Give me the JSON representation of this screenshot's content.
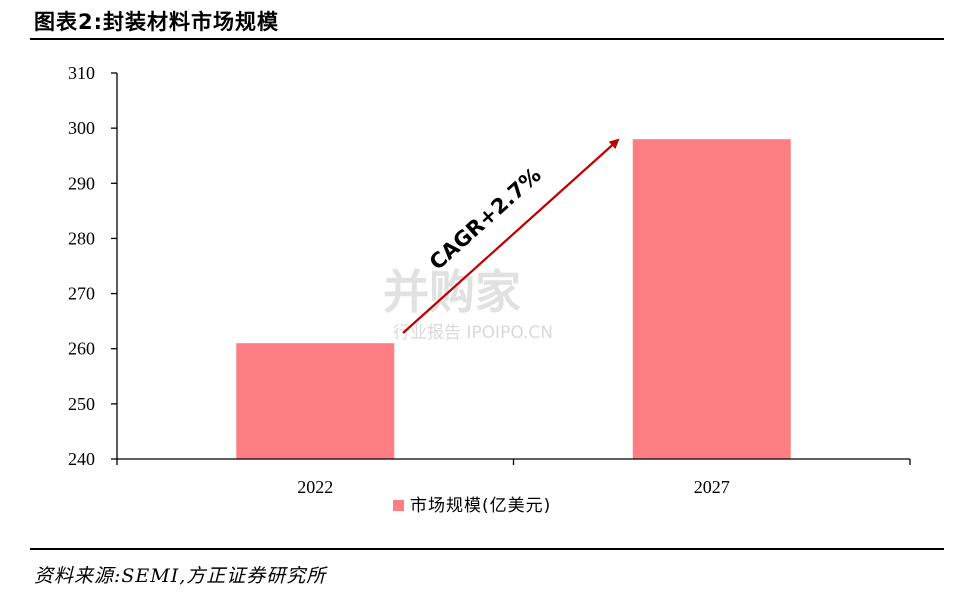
{
  "figure_title": "图表2:封装材料市场规模",
  "source_text": "资料来源:SEMI,方正证券研究所",
  "watermark": {
    "main": "并购家",
    "sub": "行业报告 IPOIPO.CN"
  },
  "colors": {
    "bar": "#fd7f84",
    "arrow": "#c00000",
    "axis": "#000000"
  },
  "chart_data": {
    "type": "bar",
    "categories": [
      "2022",
      "2027"
    ],
    "series": [
      {
        "name": "市场规模(亿美元)",
        "values": [
          261,
          298
        ]
      }
    ],
    "ylim": [
      240,
      310
    ],
    "yticks": [
      240,
      250,
      260,
      270,
      280,
      290,
      300,
      310
    ],
    "legend_position": "bottom",
    "grid": false,
    "annotation": {
      "text": "CAGR+2.7%"
    }
  }
}
